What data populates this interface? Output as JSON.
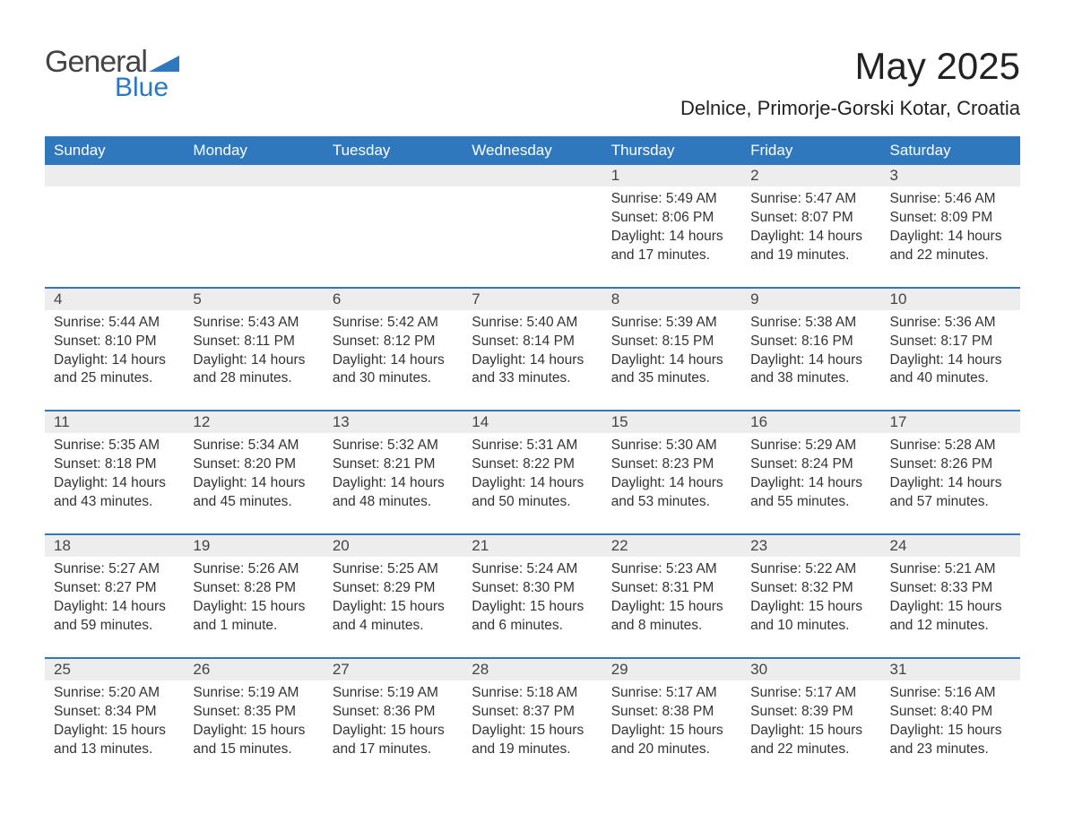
{
  "brand": {
    "word1": "General",
    "word2": "Blue",
    "tri_color": "#2f78bd"
  },
  "title": {
    "month": "May 2025",
    "location": "Delnice, Primorje-Gorski Kotar, Croatia"
  },
  "colors": {
    "header_bg": "#2f78bd",
    "header_text": "#ffffff",
    "daynum_bg": "#ededed",
    "text": "#333333",
    "background": "#ffffff",
    "week_border": "#2f78bd"
  },
  "layout": {
    "columns": 7,
    "weeks": 5,
    "first_day_column_index": 4
  },
  "day_headers": [
    "Sunday",
    "Monday",
    "Tuesday",
    "Wednesday",
    "Thursday",
    "Friday",
    "Saturday"
  ],
  "weeks": [
    [
      null,
      null,
      null,
      null,
      {
        "n": "1",
        "sr": "Sunrise: 5:49 AM",
        "ss": "Sunset: 8:06 PM",
        "d1": "Daylight: 14 hours",
        "d2": "and 17 minutes."
      },
      {
        "n": "2",
        "sr": "Sunrise: 5:47 AM",
        "ss": "Sunset: 8:07 PM",
        "d1": "Daylight: 14 hours",
        "d2": "and 19 minutes."
      },
      {
        "n": "3",
        "sr": "Sunrise: 5:46 AM",
        "ss": "Sunset: 8:09 PM",
        "d1": "Daylight: 14 hours",
        "d2": "and 22 minutes."
      }
    ],
    [
      {
        "n": "4",
        "sr": "Sunrise: 5:44 AM",
        "ss": "Sunset: 8:10 PM",
        "d1": "Daylight: 14 hours",
        "d2": "and 25 minutes."
      },
      {
        "n": "5",
        "sr": "Sunrise: 5:43 AM",
        "ss": "Sunset: 8:11 PM",
        "d1": "Daylight: 14 hours",
        "d2": "and 28 minutes."
      },
      {
        "n": "6",
        "sr": "Sunrise: 5:42 AM",
        "ss": "Sunset: 8:12 PM",
        "d1": "Daylight: 14 hours",
        "d2": "and 30 minutes."
      },
      {
        "n": "7",
        "sr": "Sunrise: 5:40 AM",
        "ss": "Sunset: 8:14 PM",
        "d1": "Daylight: 14 hours",
        "d2": "and 33 minutes."
      },
      {
        "n": "8",
        "sr": "Sunrise: 5:39 AM",
        "ss": "Sunset: 8:15 PM",
        "d1": "Daylight: 14 hours",
        "d2": "and 35 minutes."
      },
      {
        "n": "9",
        "sr": "Sunrise: 5:38 AM",
        "ss": "Sunset: 8:16 PM",
        "d1": "Daylight: 14 hours",
        "d2": "and 38 minutes."
      },
      {
        "n": "10",
        "sr": "Sunrise: 5:36 AM",
        "ss": "Sunset: 8:17 PM",
        "d1": "Daylight: 14 hours",
        "d2": "and 40 minutes."
      }
    ],
    [
      {
        "n": "11",
        "sr": "Sunrise: 5:35 AM",
        "ss": "Sunset: 8:18 PM",
        "d1": "Daylight: 14 hours",
        "d2": "and 43 minutes."
      },
      {
        "n": "12",
        "sr": "Sunrise: 5:34 AM",
        "ss": "Sunset: 8:20 PM",
        "d1": "Daylight: 14 hours",
        "d2": "and 45 minutes."
      },
      {
        "n": "13",
        "sr": "Sunrise: 5:32 AM",
        "ss": "Sunset: 8:21 PM",
        "d1": "Daylight: 14 hours",
        "d2": "and 48 minutes."
      },
      {
        "n": "14",
        "sr": "Sunrise: 5:31 AM",
        "ss": "Sunset: 8:22 PM",
        "d1": "Daylight: 14 hours",
        "d2": "and 50 minutes."
      },
      {
        "n": "15",
        "sr": "Sunrise: 5:30 AM",
        "ss": "Sunset: 8:23 PM",
        "d1": "Daylight: 14 hours",
        "d2": "and 53 minutes."
      },
      {
        "n": "16",
        "sr": "Sunrise: 5:29 AM",
        "ss": "Sunset: 8:24 PM",
        "d1": "Daylight: 14 hours",
        "d2": "and 55 minutes."
      },
      {
        "n": "17",
        "sr": "Sunrise: 5:28 AM",
        "ss": "Sunset: 8:26 PM",
        "d1": "Daylight: 14 hours",
        "d2": "and 57 minutes."
      }
    ],
    [
      {
        "n": "18",
        "sr": "Sunrise: 5:27 AM",
        "ss": "Sunset: 8:27 PM",
        "d1": "Daylight: 14 hours",
        "d2": "and 59 minutes."
      },
      {
        "n": "19",
        "sr": "Sunrise: 5:26 AM",
        "ss": "Sunset: 8:28 PM",
        "d1": "Daylight: 15 hours",
        "d2": "and 1 minute."
      },
      {
        "n": "20",
        "sr": "Sunrise: 5:25 AM",
        "ss": "Sunset: 8:29 PM",
        "d1": "Daylight: 15 hours",
        "d2": "and 4 minutes."
      },
      {
        "n": "21",
        "sr": "Sunrise: 5:24 AM",
        "ss": "Sunset: 8:30 PM",
        "d1": "Daylight: 15 hours",
        "d2": "and 6 minutes."
      },
      {
        "n": "22",
        "sr": "Sunrise: 5:23 AM",
        "ss": "Sunset: 8:31 PM",
        "d1": "Daylight: 15 hours",
        "d2": "and 8 minutes."
      },
      {
        "n": "23",
        "sr": "Sunrise: 5:22 AM",
        "ss": "Sunset: 8:32 PM",
        "d1": "Daylight: 15 hours",
        "d2": "and 10 minutes."
      },
      {
        "n": "24",
        "sr": "Sunrise: 5:21 AM",
        "ss": "Sunset: 8:33 PM",
        "d1": "Daylight: 15 hours",
        "d2": "and 12 minutes."
      }
    ],
    [
      {
        "n": "25",
        "sr": "Sunrise: 5:20 AM",
        "ss": "Sunset: 8:34 PM",
        "d1": "Daylight: 15 hours",
        "d2": "and 13 minutes."
      },
      {
        "n": "26",
        "sr": "Sunrise: 5:19 AM",
        "ss": "Sunset: 8:35 PM",
        "d1": "Daylight: 15 hours",
        "d2": "and 15 minutes."
      },
      {
        "n": "27",
        "sr": "Sunrise: 5:19 AM",
        "ss": "Sunset: 8:36 PM",
        "d1": "Daylight: 15 hours",
        "d2": "and 17 minutes."
      },
      {
        "n": "28",
        "sr": "Sunrise: 5:18 AM",
        "ss": "Sunset: 8:37 PM",
        "d1": "Daylight: 15 hours",
        "d2": "and 19 minutes."
      },
      {
        "n": "29",
        "sr": "Sunrise: 5:17 AM",
        "ss": "Sunset: 8:38 PM",
        "d1": "Daylight: 15 hours",
        "d2": "and 20 minutes."
      },
      {
        "n": "30",
        "sr": "Sunrise: 5:17 AM",
        "ss": "Sunset: 8:39 PM",
        "d1": "Daylight: 15 hours",
        "d2": "and 22 minutes."
      },
      {
        "n": "31",
        "sr": "Sunrise: 5:16 AM",
        "ss": "Sunset: 8:40 PM",
        "d1": "Daylight: 15 hours",
        "d2": "and 23 minutes."
      }
    ]
  ]
}
